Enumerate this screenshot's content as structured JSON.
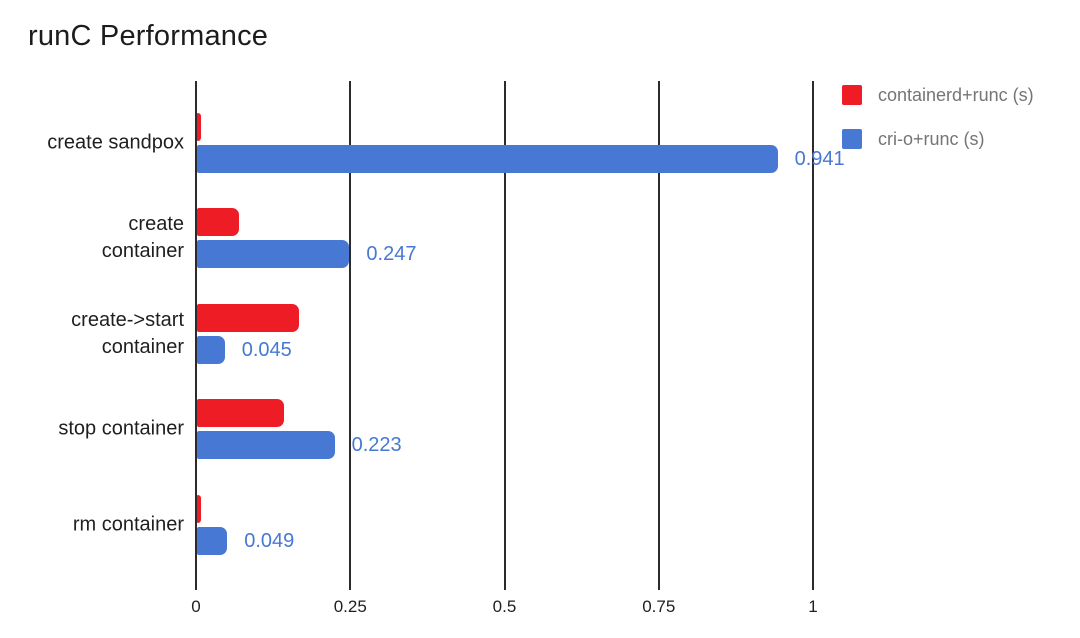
{
  "chart": {
    "title": "runC Performance"
  },
  "chart_data": {
    "type": "bar",
    "orientation": "horizontal",
    "title": "runC Performance",
    "xlabel": "",
    "ylabel": "",
    "xlim": [
      0,
      1
    ],
    "grid": true,
    "legend_position": "top-right",
    "x_ticks": [
      0,
      0.25,
      0.5,
      0.75,
      1
    ],
    "x_tick_labels": [
      "0",
      "0.25",
      "0.5",
      "0.75",
      "1"
    ],
    "categories": [
      {
        "label": "create sandpox",
        "lines": [
          "create sandpox"
        ]
      },
      {
        "label": "create container",
        "lines": [
          "create",
          "container"
        ]
      },
      {
        "label": "create->start container",
        "lines": [
          "create->start",
          "container"
        ]
      },
      {
        "label": "stop container",
        "lines": [
          "stop container"
        ]
      },
      {
        "label": "rm container",
        "lines": [
          "rm container"
        ]
      }
    ],
    "series": [
      {
        "name": "containerd+runc (s)",
        "color": "#ee1c25",
        "values": [
          0.005,
          0.068,
          0.166,
          0.141,
          0.005
        ],
        "value_labels": [
          "",
          "",
          "",
          "",
          ""
        ]
      },
      {
        "name": "cri-o+runc (s)",
        "color": "#4778d3",
        "values": [
          0.941,
          0.247,
          0.045,
          0.223,
          0.049
        ],
        "value_labels": [
          "0.941",
          "0.247",
          "0.045",
          "0.223",
          "0.049"
        ]
      }
    ],
    "value_label_color": "#4778d3",
    "gridline_color": "#2b2b2b",
    "text_color": "#1f1f1f",
    "legend_text_color": "#757575"
  }
}
